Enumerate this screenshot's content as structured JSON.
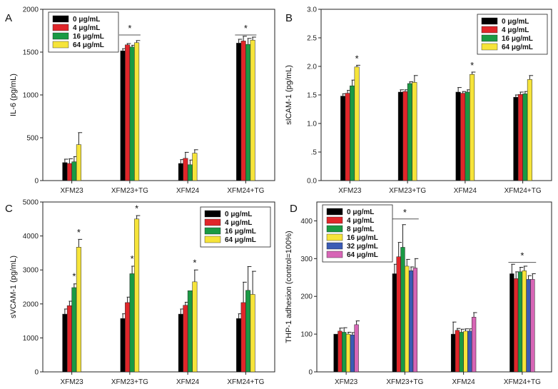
{
  "chart_data": [
    {
      "type": "bar",
      "panel": "A",
      "ylabel": "IL-6 (pg/mL)",
      "ylim": [
        0,
        2000
      ],
      "yticks": [
        0,
        500,
        1000,
        1500,
        2000
      ],
      "ytick_labels": [
        "0",
        "500",
        "1000",
        "1500",
        "2000"
      ],
      "categories": [
        "XFM23",
        "XFM23+TG",
        "XFM24",
        "XFM24+TG"
      ],
      "legend_position": "top-left",
      "series": [
        {
          "name": "0 μg/mL",
          "color": "#000000",
          "values": [
            210,
            1515,
            200,
            1605
          ],
          "errors": [
            40,
            25,
            45,
            45
          ]
        },
        {
          "name": "4 μg/mL",
          "color": "#e0262a",
          "values": [
            200,
            1585,
            260,
            1630
          ],
          "errors": [
            55,
            15,
            70,
            55
          ]
        },
        {
          "name": "16 μg/mL",
          "color": "#1a9a44",
          "values": [
            220,
            1560,
            185,
            1590
          ],
          "errors": [
            60,
            20,
            55,
            70
          ]
        },
        {
          "name": "64 μg/mL",
          "color": "#f6e43a",
          "values": [
            420,
            1610,
            320,
            1640
          ],
          "errors": [
            140,
            25,
            40,
            35
          ]
        }
      ],
      "significance": [
        {
          "label": "*",
          "from": 1,
          "to": 1,
          "y": 1700,
          "bracket": true
        },
        {
          "label": "*",
          "from": 3,
          "to": 3,
          "y": 1700,
          "bracket": true
        }
      ]
    },
    {
      "type": "bar",
      "panel": "B",
      "ylabel": "sICAM-1 (pg/mL)",
      "ylim": [
        0,
        3.0
      ],
      "yticks": [
        0,
        0.5,
        1.0,
        1.5,
        2.0,
        2.5,
        3.0
      ],
      "ytick_labels": [
        "0.0",
        ".5",
        "1.0",
        "1.5",
        "2.0",
        "2.5",
        "3.0"
      ],
      "categories": [
        "XFM23",
        "XFM23+TG",
        "XFM24",
        "XFM24+TG"
      ],
      "legend_position": "top-right",
      "series": [
        {
          "name": "0 μg/mL",
          "color": "#000000",
          "values": [
            1.48,
            1.55,
            1.55,
            1.46
          ],
          "errors": [
            0.04,
            0.04,
            0.08,
            0.04
          ]
        },
        {
          "name": "4 μg/mL",
          "color": "#e0262a",
          "values": [
            1.53,
            1.56,
            1.53,
            1.51
          ],
          "errors": [
            0.05,
            0.03,
            0.03,
            0.04
          ]
        },
        {
          "name": "16 μg/mL",
          "color": "#1a9a44",
          "values": [
            1.66,
            1.7,
            1.55,
            1.52
          ],
          "errors": [
            0.1,
            0.03,
            0.04,
            0.04
          ]
        },
        {
          "name": "64 μg/mL",
          "color": "#f6e43a",
          "values": [
            1.99,
            1.72,
            1.86,
            1.77
          ],
          "errors": [
            0.03,
            0.12,
            0.04,
            0.07
          ]
        }
      ],
      "significance": [
        {
          "label": "*",
          "from": 0,
          "to": 0,
          "series": 3,
          "y": 2.08,
          "bracket": false
        },
        {
          "label": "*",
          "from": 2,
          "to": 2,
          "series": 3,
          "y": 1.96,
          "bracket": false
        }
      ]
    },
    {
      "type": "bar",
      "panel": "C",
      "ylabel": "sVCAM-1 (pg/mL)",
      "ylim": [
        0,
        5000
      ],
      "yticks": [
        0,
        1000,
        2000,
        3000,
        4000,
        5000
      ],
      "ytick_labels": [
        "0",
        "1000",
        "2000",
        "3000",
        "4000",
        "5000"
      ],
      "categories": [
        "XFM23",
        "XFM23+TG",
        "XFM24",
        "XFM24+TG"
      ],
      "legend_position": "top-right",
      "series": [
        {
          "name": "0 μg/mL",
          "color": "#000000",
          "values": [
            1700,
            1570,
            1700,
            1570
          ],
          "errors": [
            150,
            140,
            150,
            140
          ]
        },
        {
          "name": "4 μg/mL",
          "color": "#e0262a",
          "values": [
            1950,
            2040,
            1960,
            2040
          ],
          "errors": [
            130,
            160,
            90,
            600
          ]
        },
        {
          "name": "16 μg/mL",
          "color": "#1a9a44",
          "values": [
            2480,
            2890,
            2390,
            2400
          ],
          "errors": [
            110,
            220,
            0,
            700
          ]
        },
        {
          "name": "64 μg/mL",
          "color": "#f6e43a",
          "values": [
            3670,
            4500,
            2650,
            2280
          ],
          "errors": [
            230,
            100,
            350,
            680
          ]
        }
      ],
      "significance": [
        {
          "label": "*",
          "from": 0,
          "to": 0,
          "series": 2,
          "y": 2720,
          "bracket": false
        },
        {
          "label": "*",
          "from": 0,
          "to": 0,
          "series": 3,
          "y": 4010,
          "bracket": false
        },
        {
          "label": "*",
          "from": 1,
          "to": 1,
          "series": 2,
          "y": 3240,
          "bracket": false
        },
        {
          "label": "*",
          "from": 1,
          "to": 1,
          "series": 3,
          "y": 4720,
          "bracket": false
        },
        {
          "label": "*",
          "from": 2,
          "to": 2,
          "series": 3,
          "y": 3120,
          "bracket": false
        }
      ]
    },
    {
      "type": "bar",
      "panel": "D",
      "ylabel": "THP-1 adhesion (control=100%)",
      "ylim": [
        0,
        450
      ],
      "yticks": [
        0,
        100,
        200,
        300,
        400
      ],
      "ytick_labels": [
        "0",
        "100",
        "200",
        "300",
        "400"
      ],
      "categories": [
        "XFM23",
        "XFM23+TG",
        "XFM24",
        "XFM24+TG"
      ],
      "legend_position": "top-left",
      "series": [
        {
          "name": "0 μg/mL",
          "color": "#000000",
          "values": [
            100,
            260,
            100,
            260
          ],
          "errors": [
            0,
            25,
            32,
            25
          ]
        },
        {
          "name": "4 μg/mL",
          "color": "#e0262a",
          "values": [
            108,
            305,
            110,
            247
          ],
          "errors": [
            8,
            38,
            5,
            18
          ]
        },
        {
          "name": "8 μg/mL",
          "color": "#1a9a44",
          "values": [
            105,
            330,
            105,
            265
          ],
          "errors": [
            12,
            60,
            8,
            12
          ]
        },
        {
          "name": "16 μg/mL",
          "color": "#f6e43a",
          "values": [
            100,
            280,
            108,
            268
          ],
          "errors": [
            5,
            18,
            6,
            12
          ]
        },
        {
          "name": "32 μg/mL",
          "color": "#3b5bb5",
          "values": [
            98,
            268,
            108,
            245
          ],
          "errors": [
            6,
            10,
            6,
            10
          ]
        },
        {
          "name": "64 μg/mL",
          "color": "#d766b6",
          "values": [
            125,
            275,
            145,
            245
          ],
          "errors": [
            10,
            25,
            12,
            15
          ]
        }
      ],
      "significance": [
        {
          "label": "*",
          "from": 1,
          "to": 1,
          "y": 405,
          "bracket": true
        },
        {
          "label": "*",
          "from": 3,
          "to": 3,
          "y": 290,
          "bracket": true
        }
      ]
    }
  ]
}
